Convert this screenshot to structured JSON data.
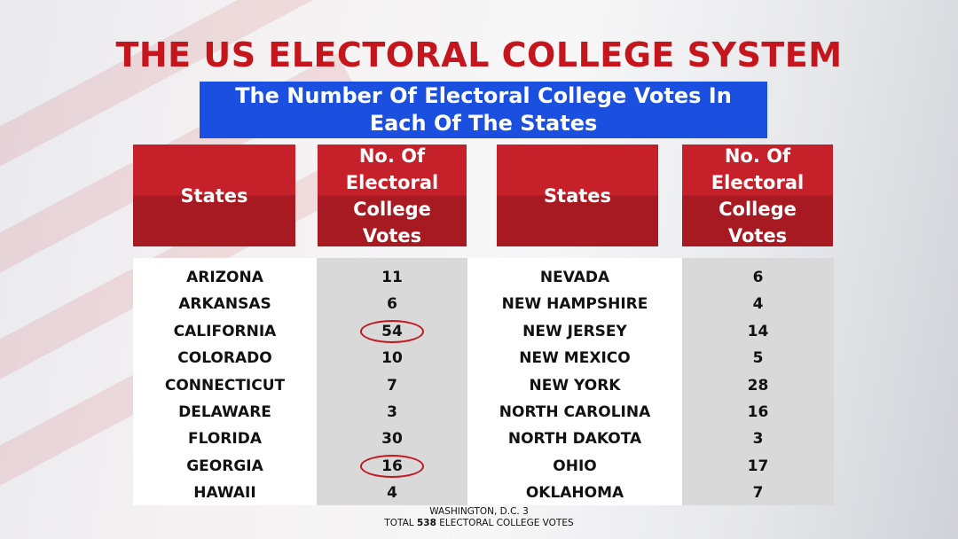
{
  "title": "THE US ELECTORAL COLLEGE SYSTEM",
  "subtitle": "The Number Of Electoral College Votes In Each Of The States",
  "table": {
    "headers": [
      "States",
      "No. Of Electoral College Votes",
      "States",
      "No. Of Electoral College Votes"
    ],
    "left_rows": [
      [
        "ARIZONA",
        11
      ],
      [
        "ARKANSAS",
        6
      ],
      [
        "CALIFORNIA",
        54
      ],
      [
        "COLORADO",
        10
      ],
      [
        "CONNECTICUT",
        7
      ],
      [
        "DELAWARE",
        3
      ],
      [
        "FLORIDA",
        30
      ],
      [
        "GEORGIA",
        16
      ],
      [
        "HAWAII",
        4
      ]
    ],
    "right_rows": [
      [
        "NEVADA",
        6
      ],
      [
        "NEW HAMPSHIRE",
        4
      ],
      [
        "NEW JERSEY",
        14
      ],
      [
        "NEW MEXICO",
        5
      ],
      [
        "NEW YORK",
        28
      ],
      [
        "NORTH CAROLINA",
        16
      ],
      [
        "NORTH DAKOTA",
        3
      ],
      [
        "OHIO",
        17
      ],
      [
        "OKLAHOMA",
        7
      ]
    ],
    "circled_left_rows": [
      2,
      7
    ]
  },
  "footer": {
    "note": "WASHINGTON, D.C. 3",
    "total_prefix": "TOTAL",
    "total_number": 538,
    "total_suffix": "ELECTORAL COLLEGE VOTES"
  }
}
